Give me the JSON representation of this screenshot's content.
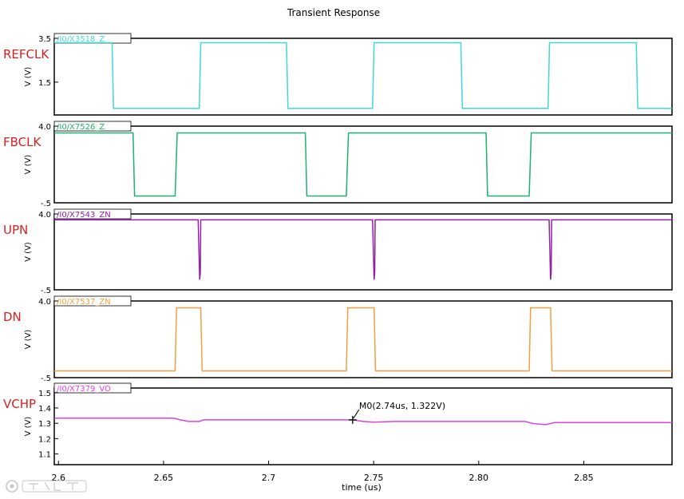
{
  "title": "Transient Response",
  "xlabel": "time (us)",
  "chart_data": {
    "type": "line",
    "title": "Transient Response",
    "xlabel": "time (us)",
    "xlim": [
      2.598,
      2.892
    ],
    "x_ticks": [
      2.6,
      2.65,
      2.7,
      2.75,
      2.8,
      2.85
    ],
    "x_tick_labels": [
      "2.6",
      "2.65",
      "2.7",
      "2.75",
      "2.80",
      "2.85"
    ],
    "grid": false,
    "panels": [
      {
        "label": "REFCLK",
        "trace": "/I0/X3518_Z",
        "ylabel": "V (V)",
        "color": "#40d8d8",
        "ylim": [
          0.0,
          3.5
        ],
        "y_ticks": [
          3.5,
          1.5
        ],
        "y_tick_labels": [
          "3.5",
          "1.5"
        ],
        "x": [
          2.598,
          2.6255,
          2.6262,
          2.667,
          2.6677,
          2.7085,
          2.7092,
          2.7495,
          2.7502,
          2.7915,
          2.7922,
          2.833,
          2.8337,
          2.875,
          2.8757,
          2.892
        ],
        "values": [
          3.3,
          3.3,
          0.3,
          0.3,
          3.3,
          3.3,
          0.3,
          0.3,
          3.3,
          3.3,
          0.3,
          0.3,
          3.3,
          3.3,
          0.3,
          0.3
        ]
      },
      {
        "label": "FBCLK",
        "trace": "/I0/X7526_Z",
        "ylabel": "V (V)",
        "color": "#20b070",
        "ylim": [
          -0.5,
          4.0
        ],
        "y_ticks": [
          4.0,
          -0.5
        ],
        "y_tick_labels": [
          "4.0",
          "-.5"
        ],
        "x": [
          2.598,
          2.6355,
          2.6362,
          2.6555,
          2.6565,
          2.7175,
          2.7182,
          2.737,
          2.738,
          2.8035,
          2.8042,
          2.824,
          2.825,
          2.892
        ],
        "values": [
          3.6,
          3.6,
          -0.1,
          -0.1,
          3.6,
          3.6,
          -0.1,
          -0.1,
          3.6,
          3.6,
          -0.1,
          -0.1,
          3.6,
          3.6
        ]
      },
      {
        "label": "UPN",
        "trace": "/I0/X7543_ZN",
        "ylabel": "V (V)",
        "color": "#9020a8",
        "ylim": [
          -0.5,
          4.0
        ],
        "y_ticks": [
          4.0,
          -0.5
        ],
        "y_tick_labels": [
          "4.0",
          "-.5"
        ],
        "x": [
          2.598,
          2.6665,
          2.6672,
          2.6675,
          2.6677,
          2.7495,
          2.7502,
          2.7505,
          2.7507,
          2.8335,
          2.8342,
          2.8345,
          2.8347,
          2.892
        ],
        "values": [
          3.65,
          3.65,
          0.1,
          0.5,
          3.65,
          3.65,
          0.1,
          0.5,
          3.65,
          3.65,
          0.1,
          0.5,
          3.65,
          3.65
        ]
      },
      {
        "label": "DN",
        "trace": "/I0/X7537_ZN",
        "ylabel": "V (V)",
        "color": "#f0a040",
        "ylim": [
          -0.5,
          4.0
        ],
        "y_ticks": [
          4.0,
          -0.5
        ],
        "y_tick_labels": [
          "4.0",
          "-.5"
        ],
        "x": [
          2.598,
          2.6555,
          2.6562,
          2.6677,
          2.6684,
          2.737,
          2.7377,
          2.7502,
          2.7509,
          2.824,
          2.8247,
          2.8342,
          2.8349,
          2.892
        ],
        "values": [
          -0.1,
          -0.1,
          3.6,
          3.6,
          -0.1,
          -0.1,
          3.6,
          3.6,
          -0.1,
          -0.1,
          3.6,
          3.6,
          -0.1,
          -0.1
        ]
      },
      {
        "label": "VCHP",
        "trace": "/I0/X7379_VO",
        "ylabel": "V (V)",
        "color": "#e040e0",
        "ylim": [
          1.03,
          1.53
        ],
        "y_ticks": [
          1.5,
          1.4,
          1.3,
          1.2,
          1.1
        ],
        "y_tick_labels": [
          "1.5",
          "1.4",
          "1.3",
          "1.2",
          "1.1"
        ],
        "x": [
          2.598,
          2.655,
          2.658,
          2.662,
          2.667,
          2.669,
          2.7,
          2.74,
          2.745,
          2.75,
          2.76,
          2.8,
          2.822,
          2.826,
          2.832,
          2.836,
          2.892
        ],
        "values": [
          1.333,
          1.333,
          1.322,
          1.312,
          1.312,
          1.322,
          1.322,
          1.322,
          1.312,
          1.307,
          1.312,
          1.312,
          1.312,
          1.298,
          1.291,
          1.305,
          1.305
        ]
      }
    ],
    "marker": {
      "panel": 4,
      "x": 2.74,
      "y": 1.322,
      "label": "M0(2.74us, 1.322V)"
    }
  }
}
